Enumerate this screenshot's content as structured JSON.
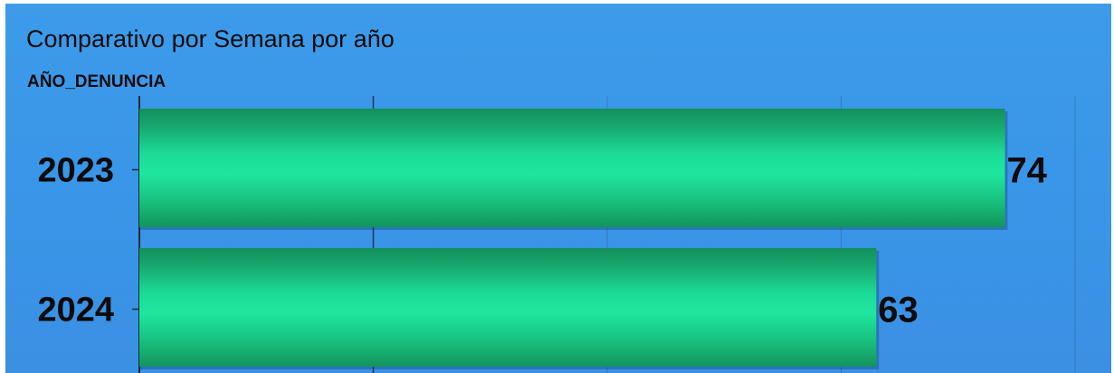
{
  "chart_data": {
    "type": "bar",
    "orientation": "horizontal",
    "title": "Comparativo por Semana por año",
    "ylabel": "AÑO_DENUNCIA",
    "categories": [
      "2023",
      "2024"
    ],
    "values": [
      74,
      63
    ],
    "xlim": [
      0,
      80
    ],
    "grid": true,
    "bar_color": "#1ee39a",
    "background_color": "#3a96e8"
  }
}
